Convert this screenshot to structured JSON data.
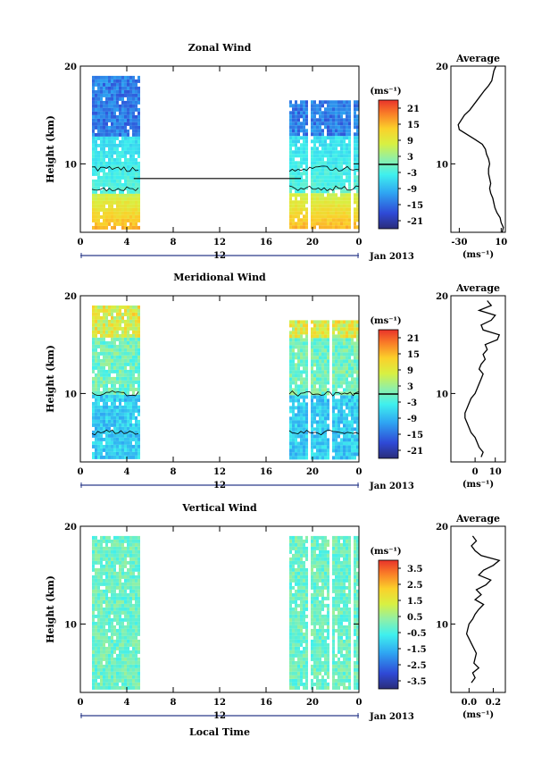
{
  "chart_data": [
    {
      "type": "heatmap",
      "title": "Zonal Wind",
      "ylabel": "Height (km)",
      "xlabel": "",
      "xlim": [
        0,
        24
      ],
      "ylim": [
        3,
        20
      ],
      "xticks": [
        "0",
        "4",
        "8",
        "12",
        "16",
        "20",
        "0"
      ],
      "yticks": [
        "10",
        "20"
      ],
      "date_label": "12",
      "month_label": "Jan 2013",
      "colorbar": {
        "unit": "(ms⁻¹)",
        "ticks": [
          "21",
          "15",
          "9",
          "3",
          "-3",
          "-9",
          "-15",
          "-21"
        ],
        "range": [
          -24,
          24
        ],
        "zero_line": true
      },
      "data_blocks": [
        {
          "x": [
            1,
            5
          ],
          "height_range": [
            3.5,
            19
          ]
        },
        {
          "x": [
            18,
            24
          ],
          "height_range": [
            3.5,
            16.5
          ]
        }
      ],
      "profile": {
        "title": "Average",
        "xlabel": "(ms⁻¹)",
        "xticks": [
          "-30",
          "10"
        ],
        "xlim": [
          -38,
          14
        ],
        "yticks": [
          "10",
          "20"
        ],
        "x": [
          11,
          12,
          10,
          9,
          6,
          4,
          3,
          2,
          0,
          -1,
          0,
          -1,
          -2,
          -2,
          -1,
          -2,
          -4,
          -5,
          -8,
          -15,
          -30,
          -31,
          -25,
          -20,
          -13,
          -6,
          -2,
          1,
          3,
          5
        ],
        "y": [
          3,
          3.5,
          4,
          4.5,
          5,
          5.5,
          6,
          6.5,
          7,
          7.5,
          8,
          8.5,
          9,
          9.5,
          10,
          10.5,
          11,
          11.5,
          12,
          12.5,
          13.5,
          14,
          15,
          15.5,
          16.5,
          17.5,
          18,
          18.5,
          19.5,
          20
        ]
      }
    },
    {
      "type": "heatmap",
      "title": "Meridional Wind",
      "ylabel": "Height (km)",
      "xlabel": "",
      "xlim": [
        0,
        24
      ],
      "ylim": [
        3,
        20
      ],
      "xticks": [
        "0",
        "4",
        "8",
        "12",
        "16",
        "20",
        "0"
      ],
      "yticks": [
        "10",
        "20"
      ],
      "date_label": "12",
      "month_label": "Jan 2013",
      "colorbar": {
        "unit": "(ms⁻¹)",
        "ticks": [
          "21",
          "15",
          "9",
          "3",
          "-3",
          "-9",
          "-15",
          "-21"
        ],
        "range": [
          -24,
          24
        ],
        "zero_line": true
      },
      "data_blocks": [
        {
          "x": [
            1,
            5
          ],
          "height_range": [
            3.5,
            19
          ]
        },
        {
          "x": [
            18,
            24
          ],
          "height_range": [
            3.5,
            17.5
          ]
        }
      ],
      "profile": {
        "title": "Average",
        "xlabel": "(ms⁻¹)",
        "xticks": [
          "0",
          "10"
        ],
        "xlim": [
          -12,
          15
        ],
        "yticks": [
          "10",
          "20"
        ],
        "x": [
          3,
          4,
          2,
          1,
          0,
          -2,
          -4,
          -5,
          -5,
          -4,
          -3,
          -2,
          0,
          1,
          2,
          3,
          4,
          2,
          3,
          5,
          4,
          6,
          5,
          11,
          12,
          4,
          3,
          8,
          10,
          2,
          8,
          6
        ],
        "y": [
          3.5,
          4,
          4.5,
          5,
          5.5,
          6,
          7,
          7.5,
          8,
          8.5,
          9,
          9.5,
          10,
          10.5,
          11,
          11.5,
          12,
          12.5,
          13,
          13.5,
          14,
          14.5,
          15,
          15.5,
          16,
          16.5,
          17,
          17.5,
          18,
          18.5,
          19,
          19.5
        ]
      }
    },
    {
      "type": "heatmap",
      "title": "Vertical Wind",
      "ylabel": "Height (km)",
      "xlabel": "Local Time",
      "xlim": [
        0,
        24
      ],
      "ylim": [
        3,
        20
      ],
      "xticks": [
        "0",
        "4",
        "8",
        "12",
        "16",
        "20",
        "0"
      ],
      "yticks": [
        "10",
        "20"
      ],
      "date_label": "12",
      "month_label": "Jan 2013",
      "colorbar": {
        "unit": "(ms⁻¹)",
        "ticks": [
          "3.5",
          "2.5",
          "1.5",
          "0.5",
          "-0.5",
          "-1.5",
          "-2.5",
          "-3.5"
        ],
        "range": [
          -4,
          4
        ],
        "zero_line": false
      },
      "data_blocks": [
        {
          "x": [
            1,
            5
          ],
          "height_range": [
            3.5,
            19
          ]
        },
        {
          "x": [
            18,
            24
          ],
          "height_range": [
            3.5,
            19
          ]
        }
      ],
      "profile": {
        "title": "Average",
        "xlabel": "(ms⁻¹)",
        "xticks": [
          "0.0",
          "0.2"
        ],
        "xlim": [
          -0.15,
          0.3
        ],
        "yticks": [
          "10",
          "20"
        ],
        "x": [
          0.02,
          0.05,
          0.03,
          0.08,
          0.04,
          0.06,
          0.02,
          0.0,
          -0.02,
          0.0,
          0.03,
          0.05,
          0.08,
          0.12,
          0.05,
          0.1,
          0.06,
          0.14,
          0.18,
          0.08,
          0.12,
          0.2,
          0.25,
          0.1,
          0.05,
          0.02,
          0.06,
          0.03
        ],
        "y": [
          4,
          4.5,
          5,
          5.5,
          6,
          7,
          8,
          8.5,
          9,
          10,
          10.5,
          11,
          11.5,
          12,
          12.5,
          13,
          13.5,
          14,
          14.5,
          15,
          15.5,
          16,
          16.5,
          17,
          17.5,
          18,
          18.5,
          19
        ]
      }
    }
  ]
}
